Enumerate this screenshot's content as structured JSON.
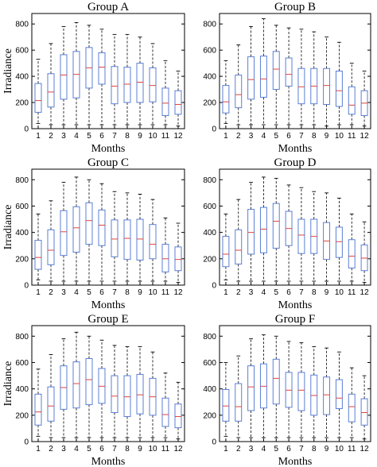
{
  "chart_data": [
    {
      "type": "box",
      "title": "Group A",
      "xlabel": "Months",
      "ylabel": "Irradiance",
      "categories": [
        "1",
        "2",
        "3",
        "4",
        "5",
        "6",
        "7",
        "8",
        "9",
        "10",
        "11",
        "12"
      ],
      "yticks": [
        "0",
        "200",
        "400",
        "600",
        "800"
      ],
      "ylim": [
        0,
        880
      ],
      "colors": {
        "box": "#5b7fd6",
        "median": "#e0443c",
        "whisker": "#000000"
      },
      "boxes": [
        {
          "min": 40,
          "q1": 125,
          "median": 215,
          "q3": 345,
          "max": 530
        },
        {
          "min": 30,
          "q1": 165,
          "median": 280,
          "q3": 420,
          "max": 650
        },
        {
          "min": 30,
          "q1": 225,
          "median": 410,
          "q3": 565,
          "max": 780
        },
        {
          "min": 30,
          "q1": 235,
          "median": 415,
          "q3": 590,
          "max": 810
        },
        {
          "min": 30,
          "q1": 310,
          "median": 465,
          "q3": 620,
          "max": 790
        },
        {
          "min": 30,
          "q1": 340,
          "median": 470,
          "q3": 580,
          "max": 760
        },
        {
          "min": 30,
          "q1": 190,
          "median": 325,
          "q3": 475,
          "max": 720
        },
        {
          "min": 30,
          "q1": 200,
          "median": 340,
          "q3": 470,
          "max": 720
        },
        {
          "min": 30,
          "q1": 200,
          "median": 355,
          "q3": 500,
          "max": 700
        },
        {
          "min": 30,
          "q1": 205,
          "median": 330,
          "q3": 465,
          "max": 650
        },
        {
          "min": 30,
          "q1": 100,
          "median": 195,
          "q3": 310,
          "max": 520
        },
        {
          "min": 20,
          "q1": 110,
          "median": 185,
          "q3": 290,
          "max": 440
        }
      ]
    },
    {
      "type": "box",
      "title": "Group B",
      "xlabel": "Months",
      "ylabel": "",
      "categories": [
        "1",
        "2",
        "3",
        "4",
        "5",
        "6",
        "7",
        "8",
        "9",
        "10",
        "11",
        "12"
      ],
      "yticks": [
        "0",
        "200",
        "400",
        "600",
        "800"
      ],
      "ylim": [
        0,
        880
      ],
      "colors": {
        "box": "#5b7fd6",
        "median": "#e0443c",
        "whisker": "#000000"
      },
      "boxes": [
        {
          "min": 40,
          "q1": 120,
          "median": 205,
          "q3": 330,
          "max": 520
        },
        {
          "min": 30,
          "q1": 160,
          "median": 260,
          "q3": 410,
          "max": 640
        },
        {
          "min": 30,
          "q1": 225,
          "median": 375,
          "q3": 550,
          "max": 780
        },
        {
          "min": 30,
          "q1": 240,
          "median": 380,
          "q3": 555,
          "max": 840
        },
        {
          "min": 30,
          "q1": 300,
          "median": 455,
          "q3": 590,
          "max": 790
        },
        {
          "min": 30,
          "q1": 325,
          "median": 415,
          "q3": 540,
          "max": 770
        },
        {
          "min": 30,
          "q1": 190,
          "median": 320,
          "q3": 460,
          "max": 760
        },
        {
          "min": 30,
          "q1": 190,
          "median": 325,
          "q3": 460,
          "max": 740
        },
        {
          "min": 20,
          "q1": 185,
          "median": 330,
          "q3": 460,
          "max": 700
        },
        {
          "min": 30,
          "q1": 170,
          "median": 290,
          "q3": 440,
          "max": 660
        },
        {
          "min": 30,
          "q1": 110,
          "median": 180,
          "q3": 320,
          "max": 500
        },
        {
          "min": 20,
          "q1": 100,
          "median": 195,
          "q3": 290,
          "max": 440
        }
      ]
    },
    {
      "type": "box",
      "title": "Group C",
      "xlabel": "Months",
      "ylabel": "Irradiance",
      "categories": [
        "1",
        "2",
        "3",
        "4",
        "5",
        "6",
        "7",
        "8",
        "9",
        "10",
        "11",
        "12"
      ],
      "yticks": [
        "0",
        "200",
        "400",
        "600",
        "800"
      ],
      "ylim": [
        0,
        880
      ],
      "colors": {
        "box": "#5b7fd6",
        "median": "#e0443c",
        "whisker": "#000000"
      },
      "boxes": [
        {
          "min": 40,
          "q1": 120,
          "median": 210,
          "q3": 340,
          "max": 540
        },
        {
          "min": 30,
          "q1": 155,
          "median": 265,
          "q3": 420,
          "max": 640
        },
        {
          "min": 30,
          "q1": 225,
          "median": 405,
          "q3": 565,
          "max": 780
        },
        {
          "min": 30,
          "q1": 250,
          "median": 435,
          "q3": 595,
          "max": 820
        },
        {
          "min": 30,
          "q1": 310,
          "median": 490,
          "q3": 625,
          "max": 800
        },
        {
          "min": 30,
          "q1": 300,
          "median": 455,
          "q3": 570,
          "max": 770
        },
        {
          "min": 30,
          "q1": 215,
          "median": 350,
          "q3": 495,
          "max": 710
        },
        {
          "min": 30,
          "q1": 195,
          "median": 355,
          "q3": 495,
          "max": 700
        },
        {
          "min": 30,
          "q1": 190,
          "median": 350,
          "q3": 500,
          "max": 690
        },
        {
          "min": 30,
          "q1": 200,
          "median": 310,
          "q3": 460,
          "max": 650
        },
        {
          "min": 30,
          "q1": 100,
          "median": 200,
          "q3": 310,
          "max": 510
        },
        {
          "min": 20,
          "q1": 110,
          "median": 195,
          "q3": 290,
          "max": 470
        }
      ]
    },
    {
      "type": "box",
      "title": "Group D",
      "xlabel": "Months",
      "ylabel": "",
      "categories": [
        "1",
        "2",
        "3",
        "4",
        "5",
        "6",
        "7",
        "8",
        "9",
        "10",
        "11",
        "12"
      ],
      "yticks": [
        "0",
        "200",
        "400",
        "600",
        "800"
      ],
      "ylim": [
        0,
        880
      ],
      "colors": {
        "box": "#5b7fd6",
        "median": "#e0443c",
        "whisker": "#000000"
      },
      "boxes": [
        {
          "min": 40,
          "q1": 140,
          "median": 235,
          "q3": 370,
          "max": 540
        },
        {
          "min": 30,
          "q1": 160,
          "median": 265,
          "q3": 420,
          "max": 650
        },
        {
          "min": 30,
          "q1": 235,
          "median": 400,
          "q3": 575,
          "max": 780
        },
        {
          "min": 30,
          "q1": 245,
          "median": 425,
          "q3": 590,
          "max": 820
        },
        {
          "min": 30,
          "q1": 280,
          "median": 485,
          "q3": 620,
          "max": 810
        },
        {
          "min": 30,
          "q1": 300,
          "median": 430,
          "q3": 560,
          "max": 760
        },
        {
          "min": 30,
          "q1": 240,
          "median": 380,
          "q3": 500,
          "max": 740
        },
        {
          "min": 30,
          "q1": 240,
          "median": 370,
          "q3": 500,
          "max": 710
        },
        {
          "min": 30,
          "q1": 195,
          "median": 335,
          "q3": 475,
          "max": 700
        },
        {
          "min": 30,
          "q1": 210,
          "median": 330,
          "q3": 440,
          "max": 660
        },
        {
          "min": 30,
          "q1": 130,
          "median": 220,
          "q3": 345,
          "max": 540
        },
        {
          "min": 20,
          "q1": 110,
          "median": 205,
          "q3": 305,
          "max": 480
        }
      ]
    },
    {
      "type": "box",
      "title": "Group E",
      "xlabel": "Months",
      "ylabel": "Irradiance",
      "categories": [
        "1",
        "2",
        "3",
        "4",
        "5",
        "6",
        "7",
        "8",
        "9",
        "10",
        "11",
        "12"
      ],
      "yticks": [
        "0",
        "200",
        "400",
        "600",
        "800"
      ],
      "ylim": [
        0,
        880
      ],
      "colors": {
        "box": "#5b7fd6",
        "median": "#e0443c",
        "whisker": "#000000"
      },
      "boxes": [
        {
          "min": 40,
          "q1": 125,
          "median": 225,
          "q3": 360,
          "max": 550
        },
        {
          "min": 30,
          "q1": 155,
          "median": 270,
          "q3": 415,
          "max": 660
        },
        {
          "min": 30,
          "q1": 245,
          "median": 410,
          "q3": 575,
          "max": 780
        },
        {
          "min": 30,
          "q1": 255,
          "median": 440,
          "q3": 605,
          "max": 830
        },
        {
          "min": 30,
          "q1": 280,
          "median": 470,
          "q3": 630,
          "max": 800
        },
        {
          "min": 30,
          "q1": 290,
          "median": 420,
          "q3": 555,
          "max": 770
        },
        {
          "min": 30,
          "q1": 220,
          "median": 345,
          "q3": 500,
          "max": 730
        },
        {
          "min": 30,
          "q1": 190,
          "median": 340,
          "q3": 500,
          "max": 720
        },
        {
          "min": 30,
          "q1": 210,
          "median": 355,
          "q3": 510,
          "max": 720
        },
        {
          "min": 30,
          "q1": 200,
          "median": 340,
          "q3": 480,
          "max": 680
        },
        {
          "min": 30,
          "q1": 115,
          "median": 205,
          "q3": 330,
          "max": 520
        },
        {
          "min": 20,
          "q1": 105,
          "median": 190,
          "q3": 285,
          "max": 450
        }
      ]
    },
    {
      "type": "box",
      "title": "Group F",
      "xlabel": "Months",
      "ylabel": "",
      "categories": [
        "1",
        "2",
        "3",
        "4",
        "5",
        "6",
        "7",
        "8",
        "9",
        "10",
        "11",
        "12"
      ],
      "yticks": [
        "0",
        "200",
        "400",
        "600",
        "800"
      ],
      "ylim": [
        0,
        880
      ],
      "colors": {
        "box": "#5b7fd6",
        "median": "#e0443c",
        "whisker": "#000000"
      },
      "boxes": [
        {
          "min": 40,
          "q1": 155,
          "median": 270,
          "q3": 395,
          "max": 600
        },
        {
          "min": 30,
          "q1": 155,
          "median": 265,
          "q3": 440,
          "max": 650
        },
        {
          "min": 30,
          "q1": 235,
          "median": 415,
          "q3": 575,
          "max": 780
        },
        {
          "min": 30,
          "q1": 255,
          "median": 420,
          "q3": 590,
          "max": 810
        },
        {
          "min": 30,
          "q1": 285,
          "median": 480,
          "q3": 625,
          "max": 800
        },
        {
          "min": 30,
          "q1": 260,
          "median": 390,
          "q3": 525,
          "max": 760
        },
        {
          "min": 30,
          "q1": 235,
          "median": 390,
          "q3": 525,
          "max": 750
        },
        {
          "min": 30,
          "q1": 200,
          "median": 350,
          "q3": 505,
          "max": 720
        },
        {
          "min": 30,
          "q1": 205,
          "median": 355,
          "q3": 490,
          "max": 710
        },
        {
          "min": 30,
          "q1": 250,
          "median": 330,
          "q3": 470,
          "max": 680
        },
        {
          "min": 30,
          "q1": 150,
          "median": 265,
          "q3": 360,
          "max": 560
        },
        {
          "min": 20,
          "q1": 125,
          "median": 220,
          "q3": 325,
          "max": 500
        }
      ]
    }
  ]
}
